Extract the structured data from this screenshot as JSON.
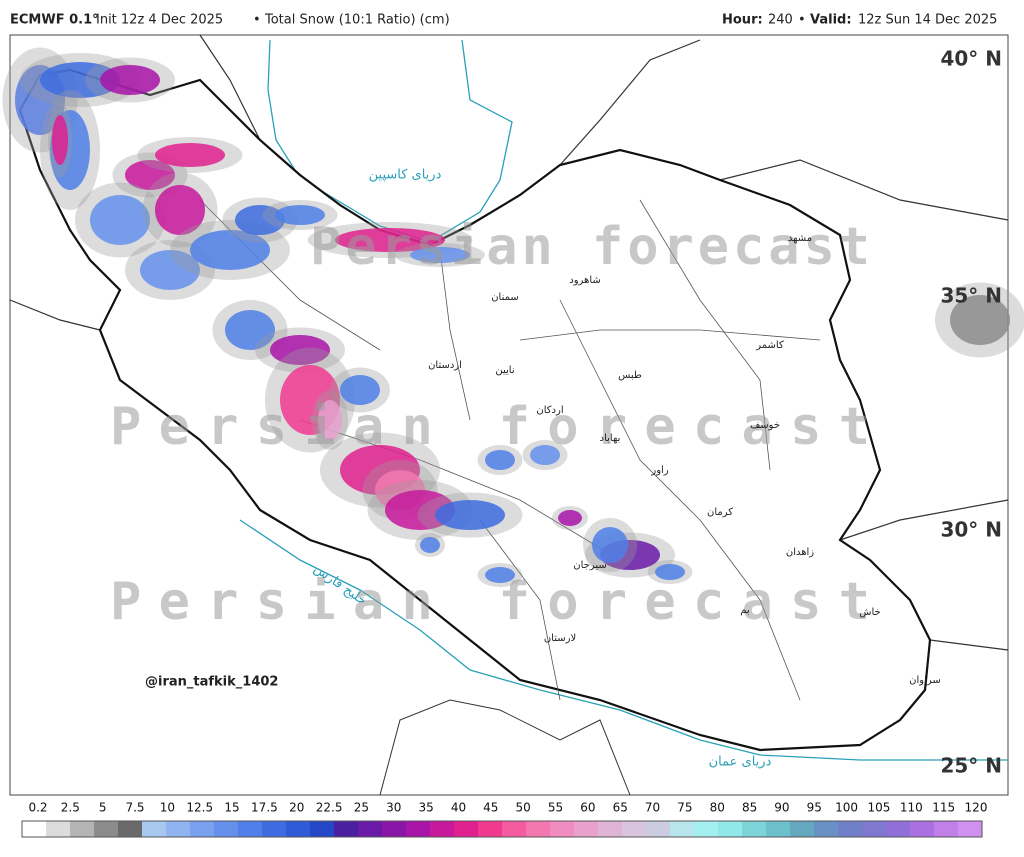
{
  "header": {
    "model": "ECMWF 0.1°",
    "init": "Init 12z 4 Dec 2025",
    "separator": "•",
    "product": "Total Snow (10:1 Ratio) (cm)",
    "hour_label": "Hour:",
    "hour": "240",
    "valid_label": "Valid:",
    "valid": "12z Sun 14 Dec 2025"
  },
  "latitudes": [
    "40° N",
    "35° N",
    "30° N",
    "25° N"
  ],
  "seas": {
    "caspian": "دریای کاسپین",
    "gulf": "خلیج فارس",
    "oman": "دریای عمان"
  },
  "places": [
    "مشهد",
    "طبس",
    "کرمان",
    "زاهدان",
    "خوسف",
    "اردکان",
    "نایین",
    "اردستان",
    "شاهرود",
    "سمنان",
    "بهاباد",
    "راور",
    "لارستان",
    "سیرجان",
    "سراوان",
    "خاش",
    "بم",
    "کاشمر"
  ],
  "watermark": [
    "Persian forecast",
    "Persian forecast",
    "Persian forecast"
  ],
  "credit": "@iran_tafkik_1402",
  "legend": {
    "ticks": [
      0.2,
      2.5,
      5,
      7.5,
      10,
      12.5,
      15,
      17.5,
      20,
      22.5,
      25,
      30,
      35,
      40,
      45,
      50,
      55,
      60,
      65,
      70,
      75,
      80,
      85,
      90,
      95,
      100,
      105,
      110,
      115,
      120
    ],
    "colors": [
      "#ffffff",
      "#dcdcdc",
      "#b4b4b4",
      "#8c8c8c",
      "#6a6a6a",
      "#a8c8f0",
      "#90b4f0",
      "#7aa0f0",
      "#6490ec",
      "#4f7fe8",
      "#3d6ce0",
      "#2f5ad8",
      "#2447c8",
      "#4a20a0",
      "#6a1aa8",
      "#8a16a8",
      "#a814a8",
      "#c8189c",
      "#e0208e",
      "#f03a90",
      "#f45aa0",
      "#f478b0",
      "#f08cc0",
      "#e8a0cc",
      "#e0b4d4",
      "#d8c4dc",
      "#cccce0",
      "#b8e4ec",
      "#a4f0f0",
      "#90e8e8",
      "#7cd4d8",
      "#6cc0cc",
      "#64a8c0",
      "#6890c4",
      "#7080c8",
      "#8078d0",
      "#9070d8",
      "#a870e0",
      "#c080e8",
      "#d090f0"
    ]
  }
}
